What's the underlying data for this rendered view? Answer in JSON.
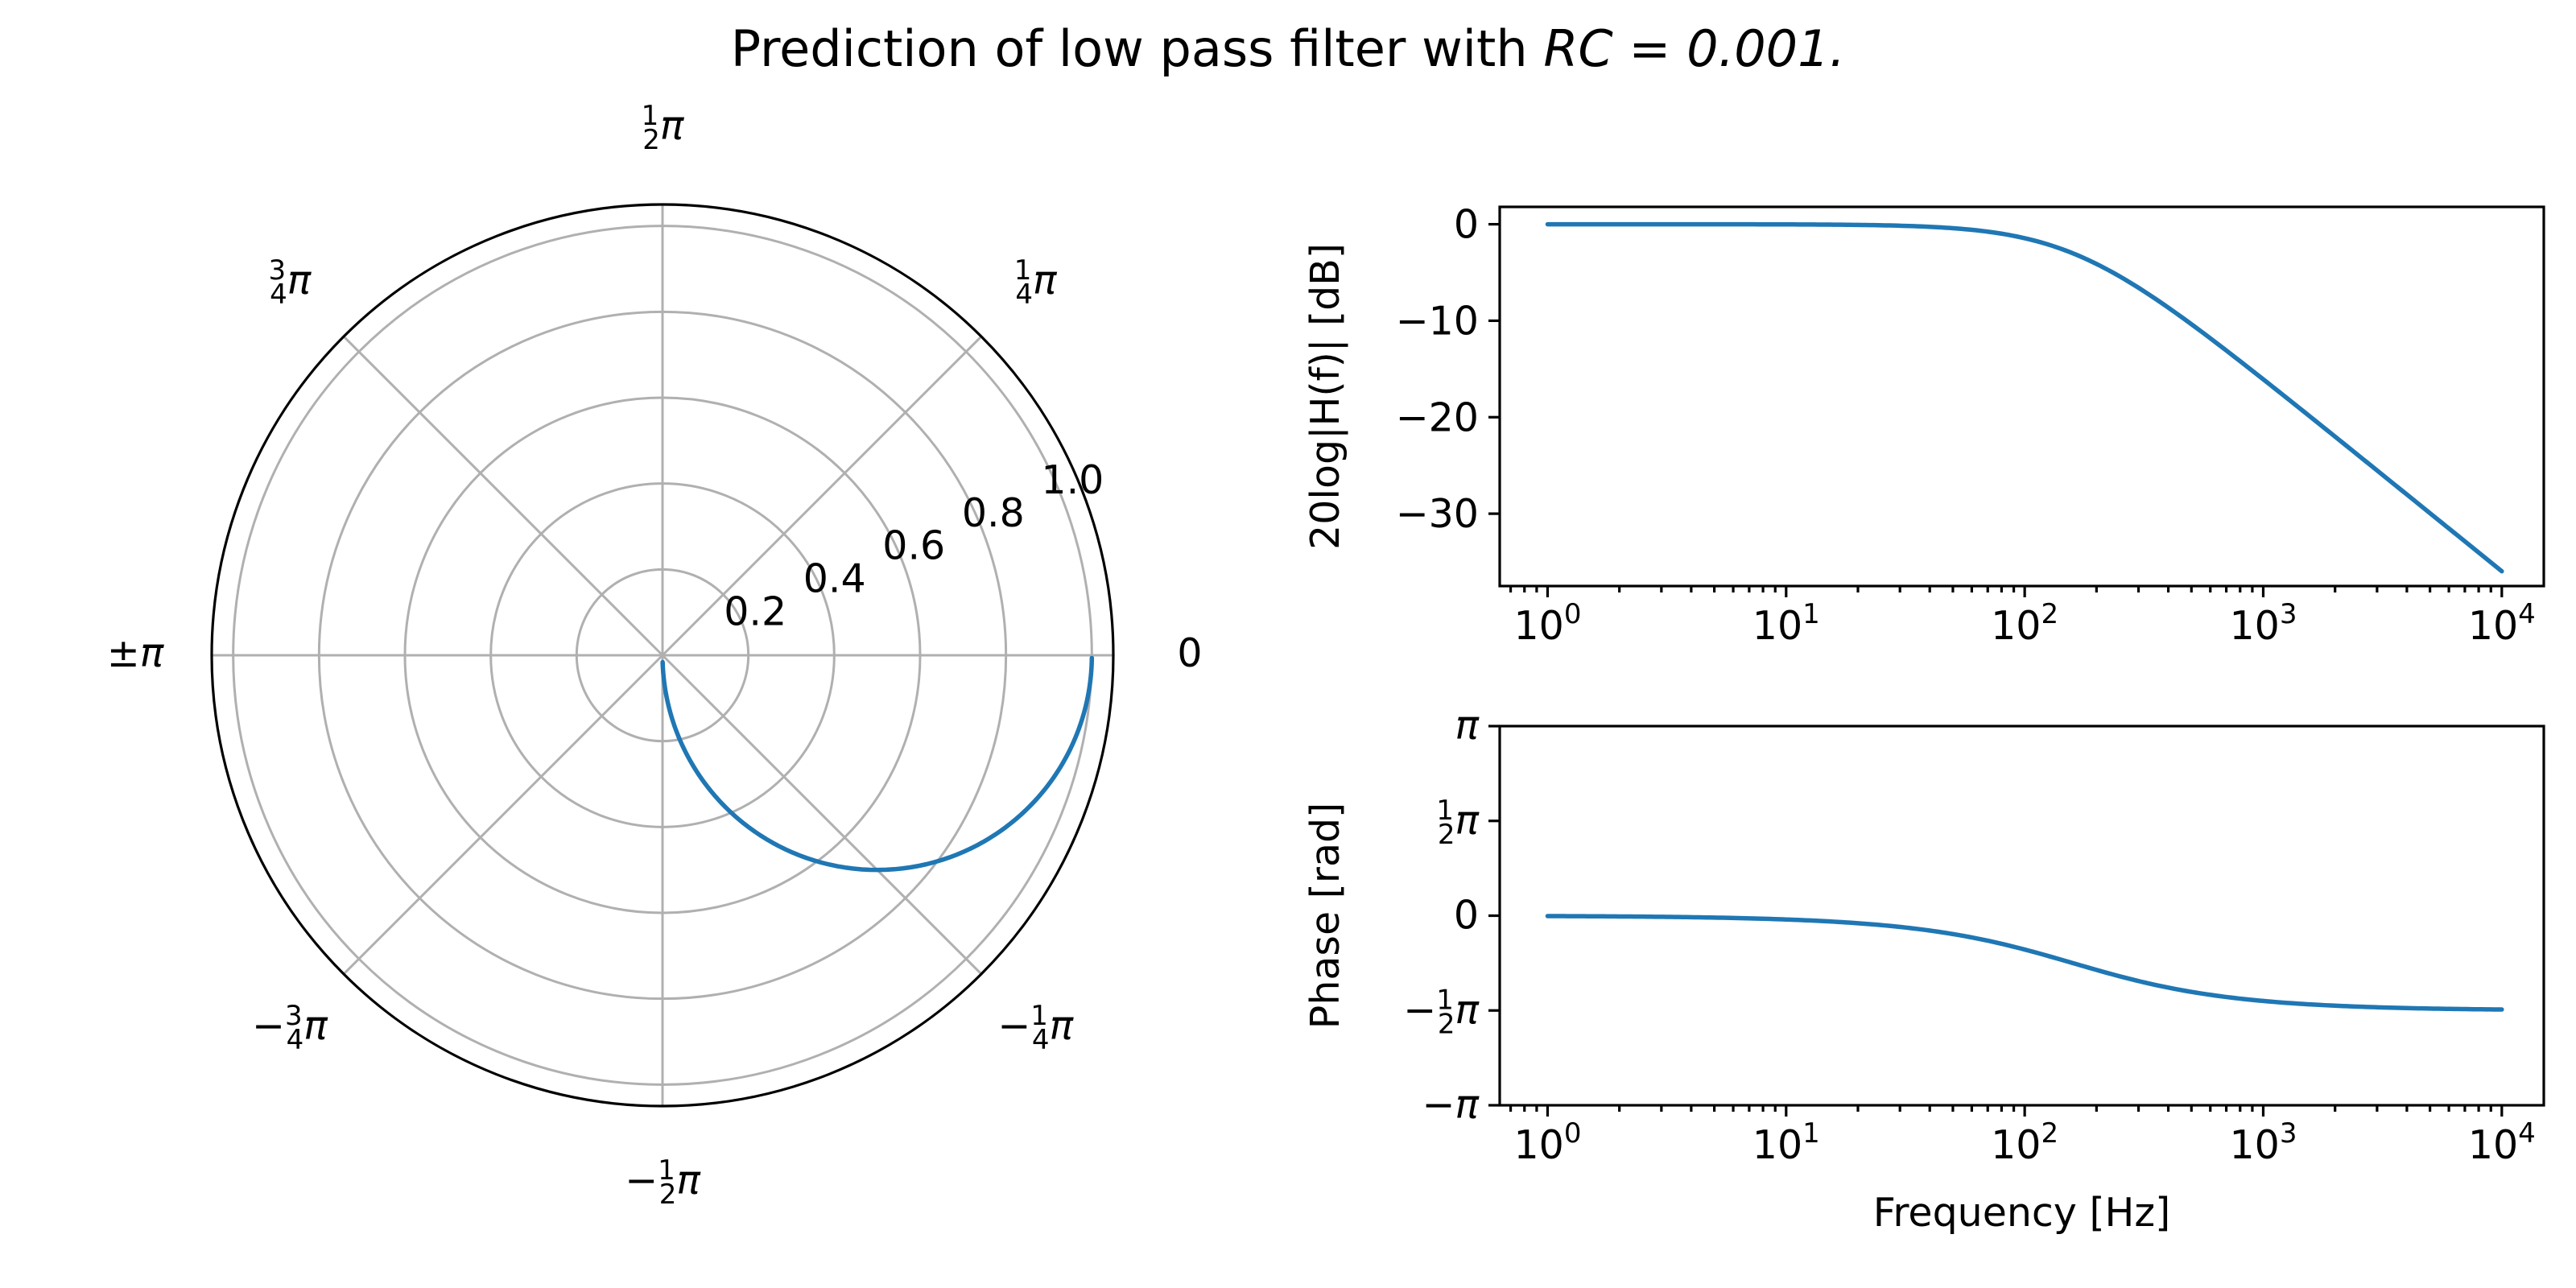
{
  "title_main": "Prediction of low pass filter with ",
  "title_math": "RC = 0.001.",
  "chart_data": [
    {
      "type": "line",
      "projection": "polar",
      "description_source": "Nyquist-style plot of H(f) = 1/(1 + j·2πf·RC)",
      "rc": 0.001,
      "r_ticks": [
        "0.2",
        "0.4",
        "0.6",
        "0.8",
        "1.0"
      ],
      "r_lim": [
        0,
        1.05
      ],
      "theta_ticks": [
        {
          "angle_rad": 0,
          "label": "0"
        },
        {
          "angle_rad": 0.7854,
          "label": "¼π"
        },
        {
          "angle_rad": 1.5708,
          "label": "½π"
        },
        {
          "angle_rad": 2.3562,
          "label": "¾π"
        },
        {
          "angle_rad": 3.1416,
          "label": "±π"
        },
        {
          "angle_rad": -2.3562,
          "label": "−¾π"
        },
        {
          "angle_rad": -1.5708,
          "label": "−½π"
        },
        {
          "angle_rad": -0.7854,
          "label": "−¼π"
        }
      ],
      "series": [
        {
          "color": "#1f77b4",
          "theta": [
            0,
            -0.0063,
            -0.0628,
            -0.3047,
            -0.561,
            -0.8986,
            -1.2654,
            -1.4116,
            -1.555,
            -1.5692
          ],
          "r": [
            1.0,
            1.0,
            0.998,
            0.954,
            0.847,
            0.623,
            0.303,
            0.159,
            0.0159,
            0.0016
          ]
        }
      ],
      "grid": true
    },
    {
      "type": "line",
      "ylabel": "20log|H(f)| [dB]",
      "xscale": "log",
      "xlim": [
        0.63,
        15000
      ],
      "ylim": [
        -37.5,
        1.8
      ],
      "x_ticks": [
        1,
        10,
        100,
        1000,
        10000
      ],
      "x_tick_labels": [
        "10",
        "10",
        "10",
        "10",
        "10"
      ],
      "x_tick_exponents": [
        "0",
        "1",
        "2",
        "3",
        "4"
      ],
      "y_ticks": [
        0,
        -10,
        -20,
        -30
      ],
      "y_tick_labels": [
        "0",
        "−10",
        "−20",
        "−30"
      ],
      "series": [
        {
          "color": "#1f77b4",
          "x": [
            1,
            3,
            10,
            30,
            60,
            100,
            159,
            200,
            300,
            500,
            1000,
            2000,
            5000,
            10000
          ],
          "y": [
            0,
            -0.002,
            -0.017,
            -0.17,
            -0.62,
            -1.56,
            -3.01,
            -4.0,
            -5.9,
            -10.4,
            -16.0,
            -22.0,
            -29.9,
            -35.9
          ]
        }
      ]
    },
    {
      "type": "line",
      "ylabel": "Phase [rad]",
      "xlabel": "Frequency [Hz]",
      "xscale": "log",
      "xlim": [
        0.63,
        15000
      ],
      "ylim": [
        -3.1416,
        3.1416
      ],
      "x_ticks": [
        1,
        10,
        100,
        1000,
        10000
      ],
      "x_tick_labels": [
        "10",
        "10",
        "10",
        "10",
        "10"
      ],
      "x_tick_exponents": [
        "0",
        "1",
        "2",
        "3",
        "4"
      ],
      "y_ticks": [
        3.1416,
        1.5708,
        0,
        -1.5708,
        -3.1416
      ],
      "y_tick_labels": [
        "π",
        "½π",
        "0",
        "−½π",
        "−π"
      ],
      "series": [
        {
          "color": "#1f77b4",
          "x": [
            1,
            3,
            10,
            30,
            60,
            100,
            159,
            200,
            300,
            500,
            1000,
            2000,
            5000,
            10000
          ],
          "y": [
            -0.0063,
            -0.0188,
            -0.0628,
            -0.1866,
            -0.3607,
            -0.561,
            -0.785,
            -0.8986,
            -1.0829,
            -1.2626,
            -1.4116,
            -1.4914,
            -1.539,
            -1.555
          ]
        }
      ]
    }
  ]
}
